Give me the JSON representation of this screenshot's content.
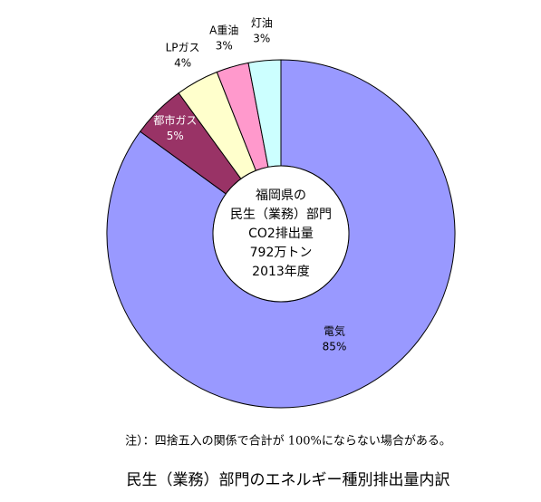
{
  "chart_data": {
    "type": "donut",
    "title": "民生（業務）部門のエネルギー種別排出量内訳",
    "center_text": [
      "福岡県の",
      "民生（業務）部門",
      "CO2排出量",
      "792万トン",
      "2013年度"
    ],
    "note": "注）：四捨五入の関係で合計が 100%にならない場合がある。",
    "categories": [
      "電気",
      "都市ガス",
      "LPガス",
      "A重油",
      "灯油"
    ],
    "values": [
      85,
      5,
      4,
      3,
      3
    ],
    "value_labels": [
      "85%",
      "5%",
      "4%",
      "3%",
      "3%"
    ],
    "colors": [
      "#9999ff",
      "#993366",
      "#ffffcc",
      "#ff99cc",
      "#ccffff"
    ]
  }
}
